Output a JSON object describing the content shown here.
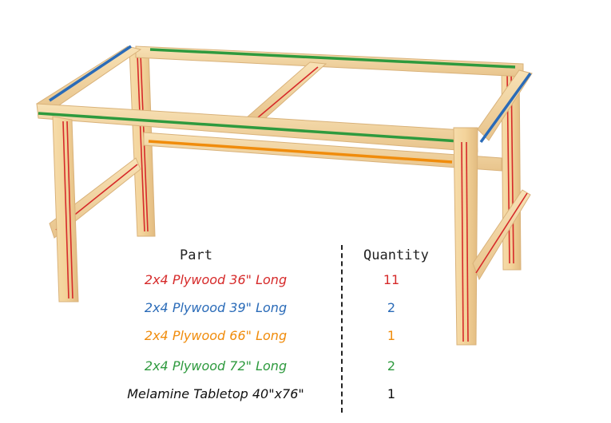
{
  "table": {
    "header_part": "Part",
    "header_quantity": "Quantity",
    "rows": [
      {
        "part": "2x4 Plywood 36\" Long",
        "quantity": "11",
        "color": "#d62a2a"
      },
      {
        "part": "2x4 Plywood 39\" Long",
        "quantity": "2",
        "color": "#2a6bb8"
      },
      {
        "part": "2x4 Plywood 66\" Long",
        "quantity": "1",
        "color": "#f08c0c"
      },
      {
        "part": "2x4 Plywood 72\" Long",
        "quantity": "2",
        "color": "#2e9a3e"
      },
      {
        "part": "Melamine Tabletop 40\"x76\"",
        "quantity": "1",
        "color": "#111111"
      }
    ]
  },
  "colors": {
    "wood": "#f2d39b",
    "wood_edge": "#d9b27a",
    "red": "#d62a2a",
    "blue": "#2a6bb8",
    "orange": "#f08c0c",
    "green": "#2e9a3e"
  }
}
